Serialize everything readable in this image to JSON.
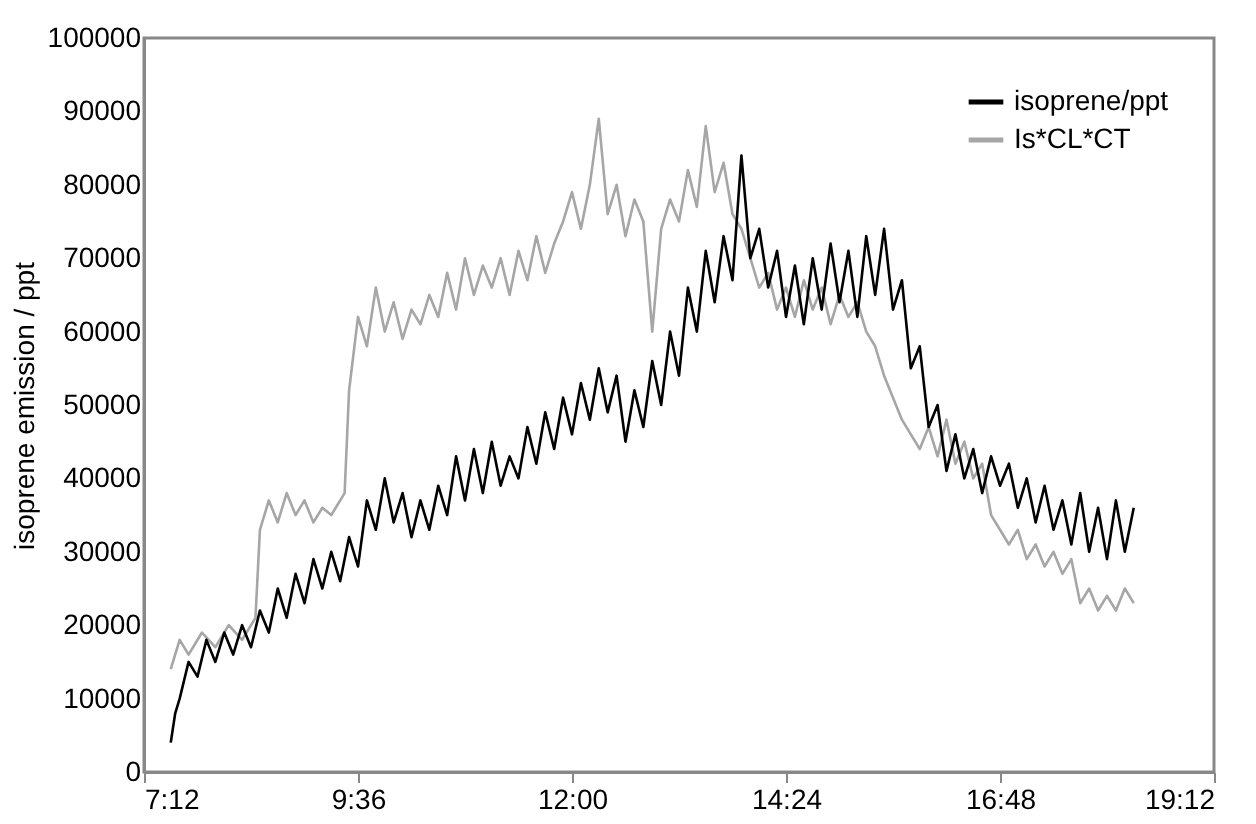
{
  "chart_data": {
    "type": "line",
    "ylabel": "isoprene emission / ppt",
    "xlim": [
      7.2,
      19.2
    ],
    "xticks": [
      {
        "value": 7.2,
        "label": "7:12"
      },
      {
        "value": 9.6,
        "label": "9:36"
      },
      {
        "value": 12,
        "label": "12:00"
      },
      {
        "value": 14.4,
        "label": "14:24"
      },
      {
        "value": 16.8,
        "label": "16:48"
      },
      {
        "value": 19.2,
        "label": "19:12"
      }
    ],
    "ylim": [
      0,
      100000
    ],
    "yticks": [
      0,
      10000,
      20000,
      30000,
      40000,
      50000,
      60000,
      70000,
      80000,
      90000,
      100000
    ],
    "grid": false,
    "legend": "top right",
    "series": [
      {
        "name": "Is*CL*CT",
        "color": "#a6a6a6",
        "x": [
          7.5,
          7.6,
          7.7,
          7.85,
          8.0,
          8.15,
          8.3,
          8.45,
          8.5,
          8.6,
          8.7,
          8.8,
          8.9,
          9.0,
          9.1,
          9.2,
          9.3,
          9.45,
          9.5,
          9.6,
          9.7,
          9.8,
          9.9,
          10.0,
          10.1,
          10.2,
          10.3,
          10.4,
          10.5,
          10.6,
          10.7,
          10.8,
          10.9,
          11.0,
          11.1,
          11.2,
          11.3,
          11.4,
          11.5,
          11.6,
          11.7,
          11.8,
          11.9,
          12.0,
          12.1,
          12.2,
          12.3,
          12.4,
          12.5,
          12.6,
          12.7,
          12.8,
          12.9,
          13.0,
          13.1,
          13.2,
          13.3,
          13.4,
          13.5,
          13.6,
          13.7,
          13.8,
          13.9,
          14.0,
          14.1,
          14.2,
          14.3,
          14.4,
          14.5,
          14.6,
          14.7,
          14.8,
          14.9,
          15.0,
          15.1,
          15.2,
          15.3,
          15.4,
          15.5,
          15.6,
          15.7,
          15.8,
          15.9,
          16.0,
          16.1,
          16.2,
          16.3,
          16.4,
          16.5,
          16.6,
          16.7,
          16.8,
          16.9,
          17.0,
          17.1,
          17.2,
          17.3,
          17.4,
          17.5,
          17.6,
          17.7,
          17.8,
          17.9,
          18.0,
          18.1,
          18.2,
          18.3
        ],
        "values": [
          14000,
          18000,
          16000,
          19000,
          17000,
          20000,
          18000,
          21000,
          33000,
          37000,
          34000,
          38000,
          35000,
          37000,
          34000,
          36000,
          35000,
          38000,
          52000,
          62000,
          58000,
          66000,
          60000,
          64000,
          59000,
          63000,
          61000,
          65000,
          62000,
          68000,
          63000,
          70000,
          65000,
          69000,
          66000,
          70000,
          65000,
          71000,
          67000,
          73000,
          68000,
          72000,
          75000,
          79000,
          74000,
          80000,
          89000,
          76000,
          80000,
          73000,
          78000,
          75000,
          60000,
          74000,
          78000,
          75000,
          82000,
          77000,
          88000,
          79000,
          83000,
          76000,
          74000,
          70000,
          66000,
          68000,
          63000,
          66000,
          62000,
          67000,
          63000,
          66000,
          61000,
          65000,
          62000,
          64000,
          60000,
          58000,
          54000,
          51000,
          48000,
          46000,
          44000,
          47000,
          43000,
          48000,
          42000,
          45000,
          40000,
          42000,
          35000,
          33000,
          31000,
          33000,
          29000,
          31000,
          28000,
          30000,
          27000,
          29000,
          23000,
          25000,
          22000,
          24000,
          22000,
          25000,
          23000
        ]
      },
      {
        "name": "isoprene/ppt",
        "color": "#000000",
        "x": [
          7.5,
          7.55,
          7.6,
          7.7,
          7.8,
          7.9,
          8.0,
          8.1,
          8.2,
          8.3,
          8.4,
          8.5,
          8.6,
          8.7,
          8.8,
          8.9,
          9.0,
          9.1,
          9.2,
          9.3,
          9.4,
          9.5,
          9.6,
          9.7,
          9.8,
          9.9,
          10.0,
          10.1,
          10.2,
          10.3,
          10.4,
          10.5,
          10.6,
          10.7,
          10.8,
          10.9,
          11.0,
          11.1,
          11.2,
          11.3,
          11.4,
          11.5,
          11.6,
          11.7,
          11.8,
          11.9,
          12.0,
          12.1,
          12.2,
          12.3,
          12.4,
          12.5,
          12.6,
          12.7,
          12.8,
          12.9,
          13.0,
          13.1,
          13.2,
          13.3,
          13.4,
          13.5,
          13.6,
          13.7,
          13.8,
          13.9,
          14.0,
          14.1,
          14.2,
          14.3,
          14.4,
          14.5,
          14.6,
          14.7,
          14.8,
          14.9,
          15.0,
          15.1,
          15.2,
          15.3,
          15.4,
          15.5,
          15.6,
          15.7,
          15.8,
          15.9,
          16.0,
          16.1,
          16.2,
          16.3,
          16.4,
          16.5,
          16.6,
          16.7,
          16.8,
          16.9,
          17.0,
          17.1,
          17.2,
          17.3,
          17.4,
          17.5,
          17.6,
          17.7,
          17.8,
          17.9,
          18.0,
          18.1,
          18.2,
          18.3
        ],
        "values": [
          4000,
          8000,
          10000,
          15000,
          13000,
          18000,
          15000,
          19000,
          16000,
          20000,
          17000,
          22000,
          19000,
          25000,
          21000,
          27000,
          23000,
          29000,
          25000,
          30000,
          26000,
          32000,
          28000,
          37000,
          33000,
          40000,
          34000,
          38000,
          32000,
          37000,
          33000,
          39000,
          35000,
          43000,
          37000,
          44000,
          38000,
          45000,
          39000,
          43000,
          40000,
          47000,
          42000,
          49000,
          44000,
          51000,
          46000,
          53000,
          48000,
          55000,
          49000,
          54000,
          45000,
          52000,
          47000,
          56000,
          50000,
          60000,
          54000,
          66000,
          60000,
          71000,
          64000,
          73000,
          67000,
          84000,
          70000,
          74000,
          66000,
          71000,
          62000,
          69000,
          61000,
          70000,
          63000,
          72000,
          64000,
          71000,
          62000,
          73000,
          65000,
          74000,
          63000,
          67000,
          55000,
          58000,
          47000,
          50000,
          41000,
          46000,
          40000,
          44000,
          38000,
          43000,
          39000,
          42000,
          36000,
          40000,
          34000,
          39000,
          33000,
          37000,
          31000,
          38000,
          30000,
          36000,
          29000,
          37000,
          30000,
          36000
        ]
      }
    ]
  }
}
